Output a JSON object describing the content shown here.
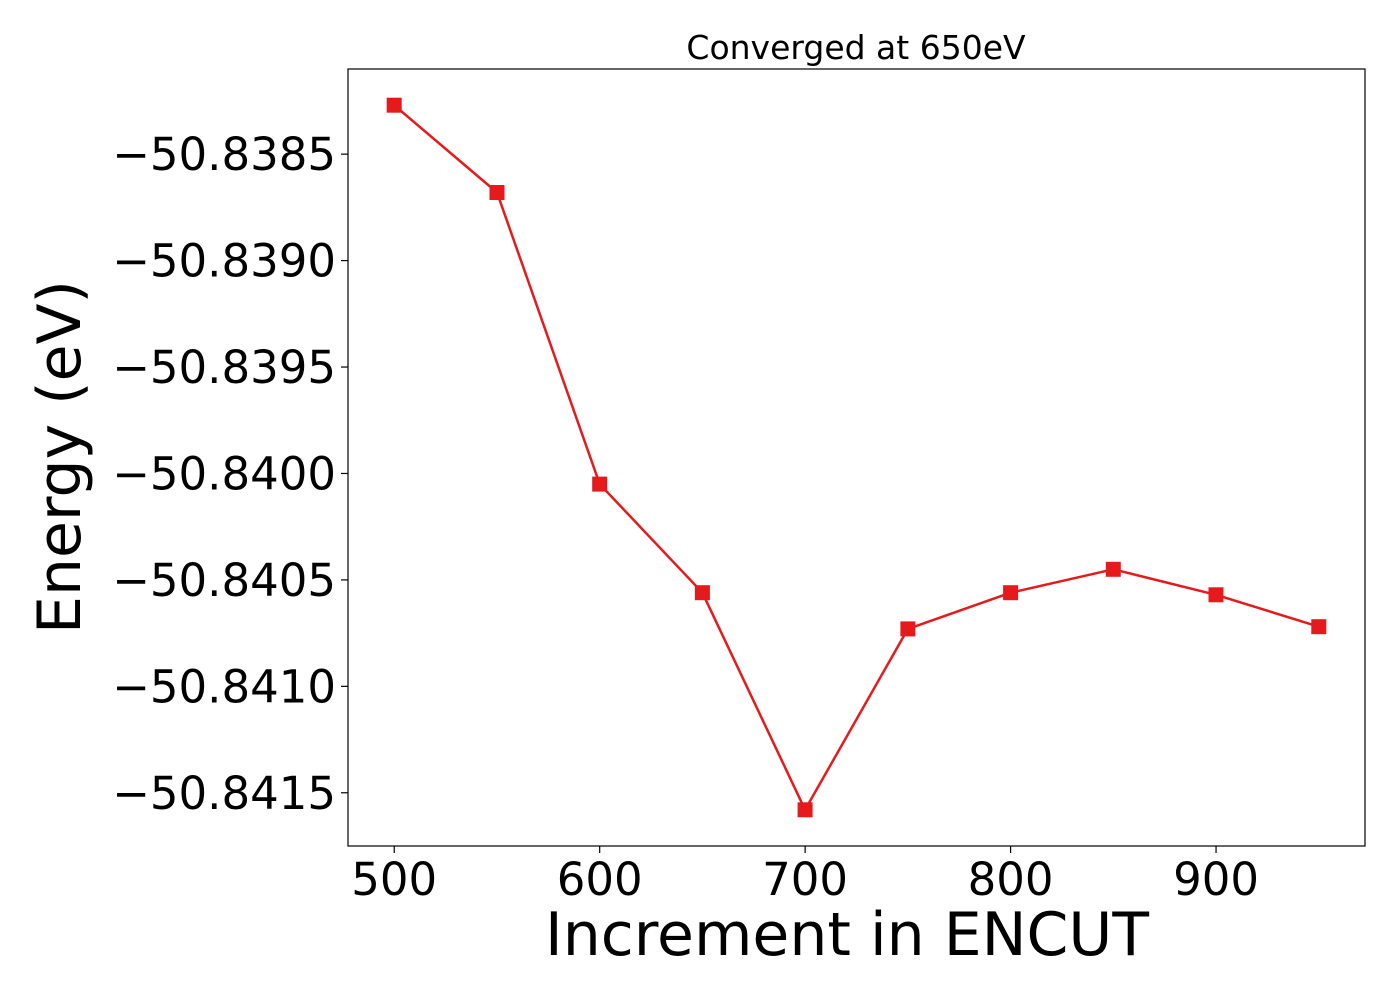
{
  "chart_data": {
    "type": "line",
    "title": "Converged at 650eV",
    "xlabel": "Increment in ENCUT",
    "ylabel": "Energy (eV)",
    "x": [
      500,
      550,
      600,
      650,
      700,
      750,
      800,
      850,
      900,
      950
    ],
    "series": [
      {
        "values": [
          -50.83827,
          -50.83868,
          -50.84005,
          -50.84056,
          -50.84158,
          -50.84073,
          -50.84056,
          -50.84045,
          -50.84057,
          -50.84072
        ],
        "color": "#e41a1c",
        "marker": "square"
      }
    ],
    "xlim": [
      477.5,
      972.5
    ],
    "ylim": [
      -50.84175,
      -50.8381
    ],
    "xticks": [
      500,
      600,
      700,
      800,
      900
    ],
    "xtick_labels": [
      "500",
      "600",
      "700",
      "800",
      "900"
    ],
    "yticks": [
      -50.8385,
      -50.839,
      -50.8395,
      -50.84,
      -50.8405,
      -50.841,
      -50.8415
    ],
    "ytick_labels": [
      "−50.8385",
      "−50.8390",
      "−50.8395",
      "−50.8400",
      "−50.8405",
      "−50.8410",
      "−50.8415"
    ],
    "grid": false,
    "legend": "none"
  }
}
